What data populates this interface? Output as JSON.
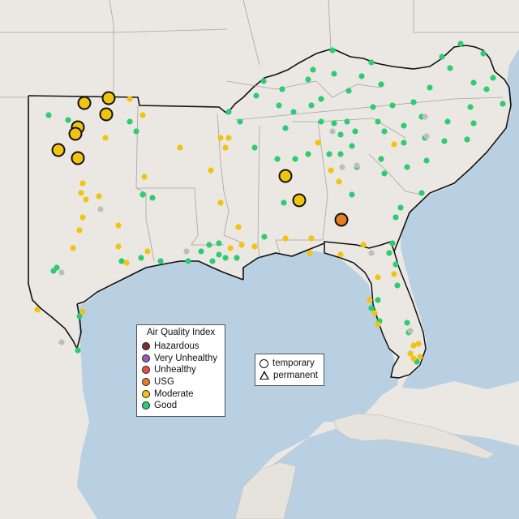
{
  "colors": {
    "land": "#ebe8e4",
    "water": "#b9cfe2",
    "hazardous": "#7a2e2e",
    "very_unhealthy": "#9b59b6",
    "unhealthy": "#e74c3c",
    "usg": "#e67e22",
    "moderate": "#f1c40f",
    "good": "#2ecc71",
    "no_data": "#bdbdbd"
  },
  "legend": {
    "title": "Air Quality Index",
    "items": [
      {
        "label": "Hazardous",
        "color": "#7a2e2e"
      },
      {
        "label": "Very Unhealthy",
        "color": "#9b59b6"
      },
      {
        "label": "Unhealthy",
        "color": "#e74c3c"
      },
      {
        "label": "USG",
        "color": "#e67e22"
      },
      {
        "label": "Moderate",
        "color": "#f1c40f"
      },
      {
        "label": "Good",
        "color": "#2ecc71"
      }
    ]
  },
  "monitor_legend": {
    "temporary": "temporary",
    "permanent": "permanent"
  }
}
